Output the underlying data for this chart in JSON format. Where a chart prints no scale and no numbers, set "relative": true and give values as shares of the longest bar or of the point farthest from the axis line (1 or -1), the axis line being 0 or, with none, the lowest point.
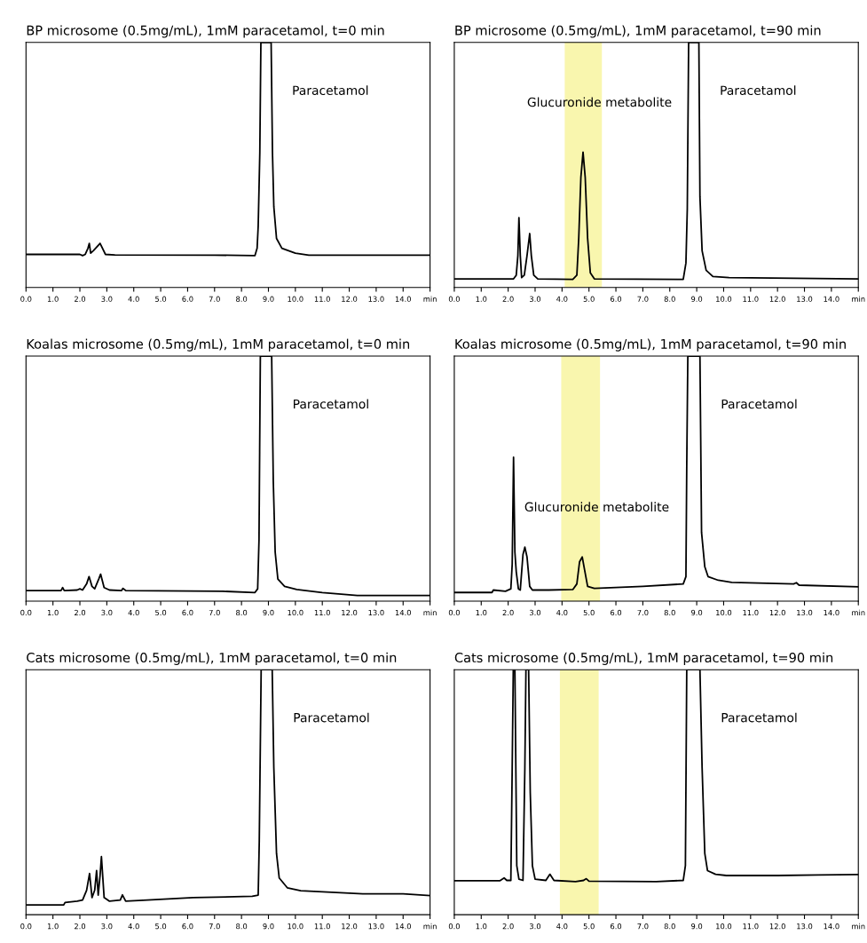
{
  "chart_data": [
    {
      "type": "line",
      "title": "BP microsome (0.5mg/mL), 1mM paracetamol, t=0 min",
      "relative": true,
      "tick_labels": "x",
      "color": "#000000",
      "xlim": [
        0,
        15
      ],
      "xticks": [
        {
          "value": 0,
          "label": "0.0"
        },
        {
          "value": 1,
          "label": "1.0"
        },
        {
          "value": 2,
          "label": "2.0"
        },
        {
          "value": 3,
          "label": "3.0"
        },
        {
          "value": 4,
          "label": "4.0"
        },
        {
          "value": 5,
          "label": "5.0"
        },
        {
          "value": 6,
          "label": "6.0"
        },
        {
          "value": 7,
          "label": "7.0"
        },
        {
          "value": 8,
          "label": "8.0"
        },
        {
          "value": 9,
          "label": "9.0"
        },
        {
          "value": 10,
          "label": "10.0"
        },
        {
          "value": 11,
          "label": "11.0"
        },
        {
          "value": 12,
          "label": "12.0"
        },
        {
          "value": 13,
          "label": "13.0"
        },
        {
          "value": 14,
          "label": "14.0"
        },
        {
          "value": 15,
          "label": "min"
        }
      ],
      "x": [
        0,
        2.0,
        2.1,
        2.2,
        2.3,
        2.35,
        2.4,
        2.5,
        2.75,
        2.95,
        3.3,
        7,
        8.5,
        8.58,
        8.62,
        8.68,
        8.72,
        9.1,
        9.15,
        9.2,
        9.3,
        9.5,
        10.0,
        10.5,
        15
      ],
      "values": [
        0.135,
        0.135,
        0.13,
        0.135,
        0.16,
        0.18,
        0.14,
        0.15,
        0.18,
        0.135,
        0.133,
        0.132,
        0.13,
        0.16,
        0.25,
        0.55,
        1,
        1,
        0.55,
        0.33,
        0.2,
        0.16,
        0.14,
        0.132,
        0.132
      ],
      "annotations": [
        "Paracetamol"
      ]
    },
    {
      "type": "line",
      "title": "BP microsome (0.5mg/mL), 1mM paracetamol, t=90 min",
      "relative": true,
      "tick_labels": "x",
      "color": "#000000",
      "xlim": [
        0,
        15
      ],
      "xticks": [
        {
          "value": 0,
          "label": "0.0"
        },
        {
          "value": 1,
          "label": "1.0"
        },
        {
          "value": 2,
          "label": "2.0"
        },
        {
          "value": 3,
          "label": "3.0"
        },
        {
          "value": 4,
          "label": "4.0"
        },
        {
          "value": 5,
          "label": "5.0"
        },
        {
          "value": 6,
          "label": "6.0"
        },
        {
          "value": 7,
          "label": "7.0"
        },
        {
          "value": 8,
          "label": "8.0"
        },
        {
          "value": 9,
          "label": "9.0"
        },
        {
          "value": 10,
          "label": "10.0"
        },
        {
          "value": 11,
          "label": "11.0"
        },
        {
          "value": 12,
          "label": "12.0"
        },
        {
          "value": 13,
          "label": "13.0"
        },
        {
          "value": 14,
          "label": "14.0"
        },
        {
          "value": 15,
          "label": "min"
        }
      ],
      "x": [
        0,
        2.2,
        2.3,
        2.36,
        2.4,
        2.45,
        2.5,
        2.6,
        2.7,
        2.8,
        2.86,
        2.95,
        3.1,
        4.4,
        4.55,
        4.62,
        4.7,
        4.78,
        4.86,
        4.95,
        5.05,
        5.2,
        8.5,
        8.6,
        8.65,
        8.7,
        9.08,
        9.12,
        9.2,
        9.35,
        9.6,
        10.2,
        15
      ],
      "values": [
        0.035,
        0.035,
        0.05,
        0.13,
        0.285,
        0.13,
        0.04,
        0.05,
        0.13,
        0.22,
        0.13,
        0.05,
        0.035,
        0.033,
        0.05,
        0.2,
        0.45,
        0.552,
        0.45,
        0.2,
        0.06,
        0.035,
        0.033,
        0.1,
        0.32,
        1,
        1,
        0.37,
        0.15,
        0.07,
        0.045,
        0.04,
        0.035
      ],
      "bands": [
        {
          "axis": "x",
          "from": 4.1,
          "to": 5.48,
          "color": "#f7f49a"
        }
      ],
      "annotations": [
        "Glucuronide metabolite",
        "Paracetamol"
      ]
    },
    {
      "type": "line",
      "title": "Koalas microsome (0.5mg/mL), 1mM paracetamol, t=0 min",
      "relative": true,
      "tick_labels": "x",
      "color": "#000000",
      "xlim": [
        0,
        15
      ],
      "xticks": [
        {
          "value": 0,
          "label": "0.0"
        },
        {
          "value": 1,
          "label": "1.0"
        },
        {
          "value": 2,
          "label": "2.0"
        },
        {
          "value": 3,
          "label": "3.0"
        },
        {
          "value": 4,
          "label": "4.0"
        },
        {
          "value": 5,
          "label": "5.0"
        },
        {
          "value": 6,
          "label": "6.0"
        },
        {
          "value": 7,
          "label": "7.0"
        },
        {
          "value": 8,
          "label": "8.0"
        },
        {
          "value": 9,
          "label": "9.0"
        },
        {
          "value": 10,
          "label": "10.0"
        },
        {
          "value": 11,
          "label": "11.0"
        },
        {
          "value": 12,
          "label": "12.0"
        },
        {
          "value": 13,
          "label": "13.0"
        },
        {
          "value": 14,
          "label": "14.0"
        },
        {
          "value": 15,
          "label": "min"
        }
      ],
      "x": [
        0,
        1.3,
        1.36,
        1.42,
        1.9,
        2.0,
        2.1,
        2.25,
        2.34,
        2.45,
        2.55,
        2.7,
        2.77,
        2.9,
        3.1,
        3.55,
        3.6,
        3.7,
        7.3,
        8.5,
        8.6,
        8.65,
        8.7,
        9.12,
        9.18,
        9.25,
        9.35,
        9.6,
        10.05,
        11,
        12.3,
        15
      ],
      "values": [
        0.043,
        0.043,
        0.055,
        0.043,
        0.045,
        0.05,
        0.045,
        0.07,
        0.1,
        0.06,
        0.05,
        0.09,
        0.11,
        0.055,
        0.045,
        0.043,
        0.052,
        0.043,
        0.04,
        0.035,
        0.05,
        0.25,
        1,
        1,
        0.49,
        0.2,
        0.09,
        0.06,
        0.047,
        0.035,
        0.023,
        0.023
      ],
      "annotations": [
        "Paracetamol"
      ]
    },
    {
      "type": "line",
      "title": "Koalas microsome (0.5mg/mL), 1mM paracetamol, t=90 min",
      "relative": true,
      "tick_labels": "x",
      "color": "#000000",
      "xlim": [
        0,
        15
      ],
      "xticks": [
        {
          "value": 0,
          "label": "0.0"
        },
        {
          "value": 1,
          "label": "1.0"
        },
        {
          "value": 2,
          "label": "2.0"
        },
        {
          "value": 3,
          "label": "3.0"
        },
        {
          "value": 4,
          "label": "4.0"
        },
        {
          "value": 5,
          "label": "5.0"
        },
        {
          "value": 6,
          "label": "6.0"
        },
        {
          "value": 7,
          "label": "7.0"
        },
        {
          "value": 8,
          "label": "8.0"
        },
        {
          "value": 9,
          "label": "9.0"
        },
        {
          "value": 10,
          "label": "10.0"
        },
        {
          "value": 11,
          "label": "11.0"
        },
        {
          "value": 12,
          "label": "12.0"
        },
        {
          "value": 13,
          "label": "13.0"
        },
        {
          "value": 14,
          "label": "14.0"
        },
        {
          "value": 15,
          "label": "min"
        }
      ],
      "x": [
        0,
        1.4,
        1.45,
        1.9,
        2.1,
        2.15,
        2.2,
        2.25,
        2.3,
        2.38,
        2.45,
        2.55,
        2.62,
        2.7,
        2.8,
        2.9,
        3.5,
        4.4,
        4.55,
        4.65,
        4.75,
        4.85,
        4.95,
        5.2,
        7.0,
        8.5,
        8.6,
        8.63,
        8.67,
        9.12,
        9.18,
        9.3,
        9.42,
        9.8,
        10.3,
        12.6,
        12.7,
        12.8,
        15
      ],
      "values": [
        0.035,
        0.035,
        0.045,
        0.04,
        0.05,
        0.15,
        0.587,
        0.2,
        0.12,
        0.05,
        0.045,
        0.19,
        0.22,
        0.18,
        0.06,
        0.045,
        0.045,
        0.047,
        0.07,
        0.16,
        0.18,
        0.12,
        0.06,
        0.052,
        0.06,
        0.07,
        0.1,
        0.55,
        1,
        1,
        0.28,
        0.14,
        0.1,
        0.085,
        0.076,
        0.07,
        0.075,
        0.065,
        0.058
      ],
      "bands": [
        {
          "axis": "x",
          "from": 3.97,
          "to": 5.41,
          "color": "#f7f49a"
        }
      ],
      "annotations": [
        "Glucuronide metabolite",
        "Paracetamol"
      ]
    },
    {
      "type": "line",
      "title": "Cats microsome (0.5mg/mL), 1mM paracetamol, t=0 min",
      "relative": true,
      "tick_labels": "x",
      "color": "#000000",
      "xlim": [
        0,
        15
      ],
      "xticks": [
        {
          "value": 0,
          "label": "0.0"
        },
        {
          "value": 1,
          "label": "1.0"
        },
        {
          "value": 2,
          "label": "2.0"
        },
        {
          "value": 3,
          "label": "3.0"
        },
        {
          "value": 4,
          "label": "4.0"
        },
        {
          "value": 5,
          "label": "5.0"
        },
        {
          "value": 6,
          "label": "6.0"
        },
        {
          "value": 7,
          "label": "7.0"
        },
        {
          "value": 8,
          "label": "8.0"
        },
        {
          "value": 9,
          "label": "9.0"
        },
        {
          "value": 10,
          "label": "10.0"
        },
        {
          "value": 11,
          "label": "11.0"
        },
        {
          "value": 12,
          "label": "12.0"
        },
        {
          "value": 13,
          "label": "13.0"
        },
        {
          "value": 14,
          "label": "14.0"
        },
        {
          "value": 15,
          "label": "min"
        }
      ],
      "x": [
        0,
        1.4,
        1.45,
        1.9,
        2.1,
        2.25,
        2.36,
        2.45,
        2.55,
        2.62,
        2.68,
        2.75,
        2.8,
        2.9,
        3.1,
        3.5,
        3.58,
        3.7,
        4.5,
        6.2,
        8.4,
        8.62,
        8.66,
        8.73,
        9.14,
        9.2,
        9.3,
        9.4,
        9.7,
        10.2,
        12.5,
        14,
        15
      ],
      "values": [
        0.04,
        0.04,
        0.05,
        0.055,
        0.06,
        0.1,
        0.168,
        0.07,
        0.1,
        0.18,
        0.08,
        0.16,
        0.237,
        0.07,
        0.055,
        0.06,
        0.081,
        0.055,
        0.06,
        0.07,
        0.075,
        0.08,
        0.3,
        1,
        1,
        0.6,
        0.25,
        0.15,
        0.11,
        0.098,
        0.085,
        0.085,
        0.078
      ],
      "annotations": [
        "Paracetamol"
      ]
    },
    {
      "type": "line",
      "title": "Cats microsome (0.5mg/mL), 1mM paracetamol, t=90 min",
      "relative": true,
      "tick_labels": "x",
      "color": "#000000",
      "xlim": [
        0,
        15
      ],
      "xticks": [
        {
          "value": 0,
          "label": "0.0"
        },
        {
          "value": 1,
          "label": "1.0"
        },
        {
          "value": 2,
          "label": "2.0"
        },
        {
          "value": 3,
          "label": "3.0"
        },
        {
          "value": 4,
          "label": "4.0"
        },
        {
          "value": 5,
          "label": "5.0"
        },
        {
          "value": 6,
          "label": "6.0"
        },
        {
          "value": 7,
          "label": "7.0"
        },
        {
          "value": 8,
          "label": "8.0"
        },
        {
          "value": 9,
          "label": "9.0"
        },
        {
          "value": 10,
          "label": "10.0"
        },
        {
          "value": 11,
          "label": "11.0"
        },
        {
          "value": 12,
          "label": "12.0"
        },
        {
          "value": 13,
          "label": "13.0"
        },
        {
          "value": 14,
          "label": "14.0"
        },
        {
          "value": 15,
          "label": "min"
        }
      ],
      "x": [
        0,
        1.7,
        1.85,
        1.95,
        2.1,
        2.15,
        2.19,
        2.25,
        2.32,
        2.4,
        2.55,
        2.62,
        2.66,
        2.76,
        2.82,
        2.9,
        3.0,
        3.4,
        3.55,
        3.7,
        4.5,
        4.8,
        4.9,
        5.0,
        7.5,
        8.5,
        8.58,
        8.63,
        9.12,
        9.2,
        9.3,
        9.4,
        9.7,
        10.1,
        12,
        13.5,
        15
      ],
      "values": [
        0.139,
        0.139,
        0.15,
        0.14,
        0.14,
        0.6,
        1,
        1,
        0.2,
        0.145,
        0.14,
        0.6,
        1,
        1,
        0.5,
        0.2,
        0.145,
        0.14,
        0.165,
        0.14,
        0.135,
        0.14,
        0.147,
        0.137,
        0.135,
        0.14,
        0.2,
        1,
        1,
        0.6,
        0.25,
        0.18,
        0.165,
        0.16,
        0.16,
        0.162,
        0.164
      ],
      "bands": [
        {
          "axis": "x",
          "from": 3.92,
          "to": 5.36,
          "color": "#f7f49a"
        }
      ],
      "annotations": [
        "Paracetamol"
      ]
    }
  ]
}
